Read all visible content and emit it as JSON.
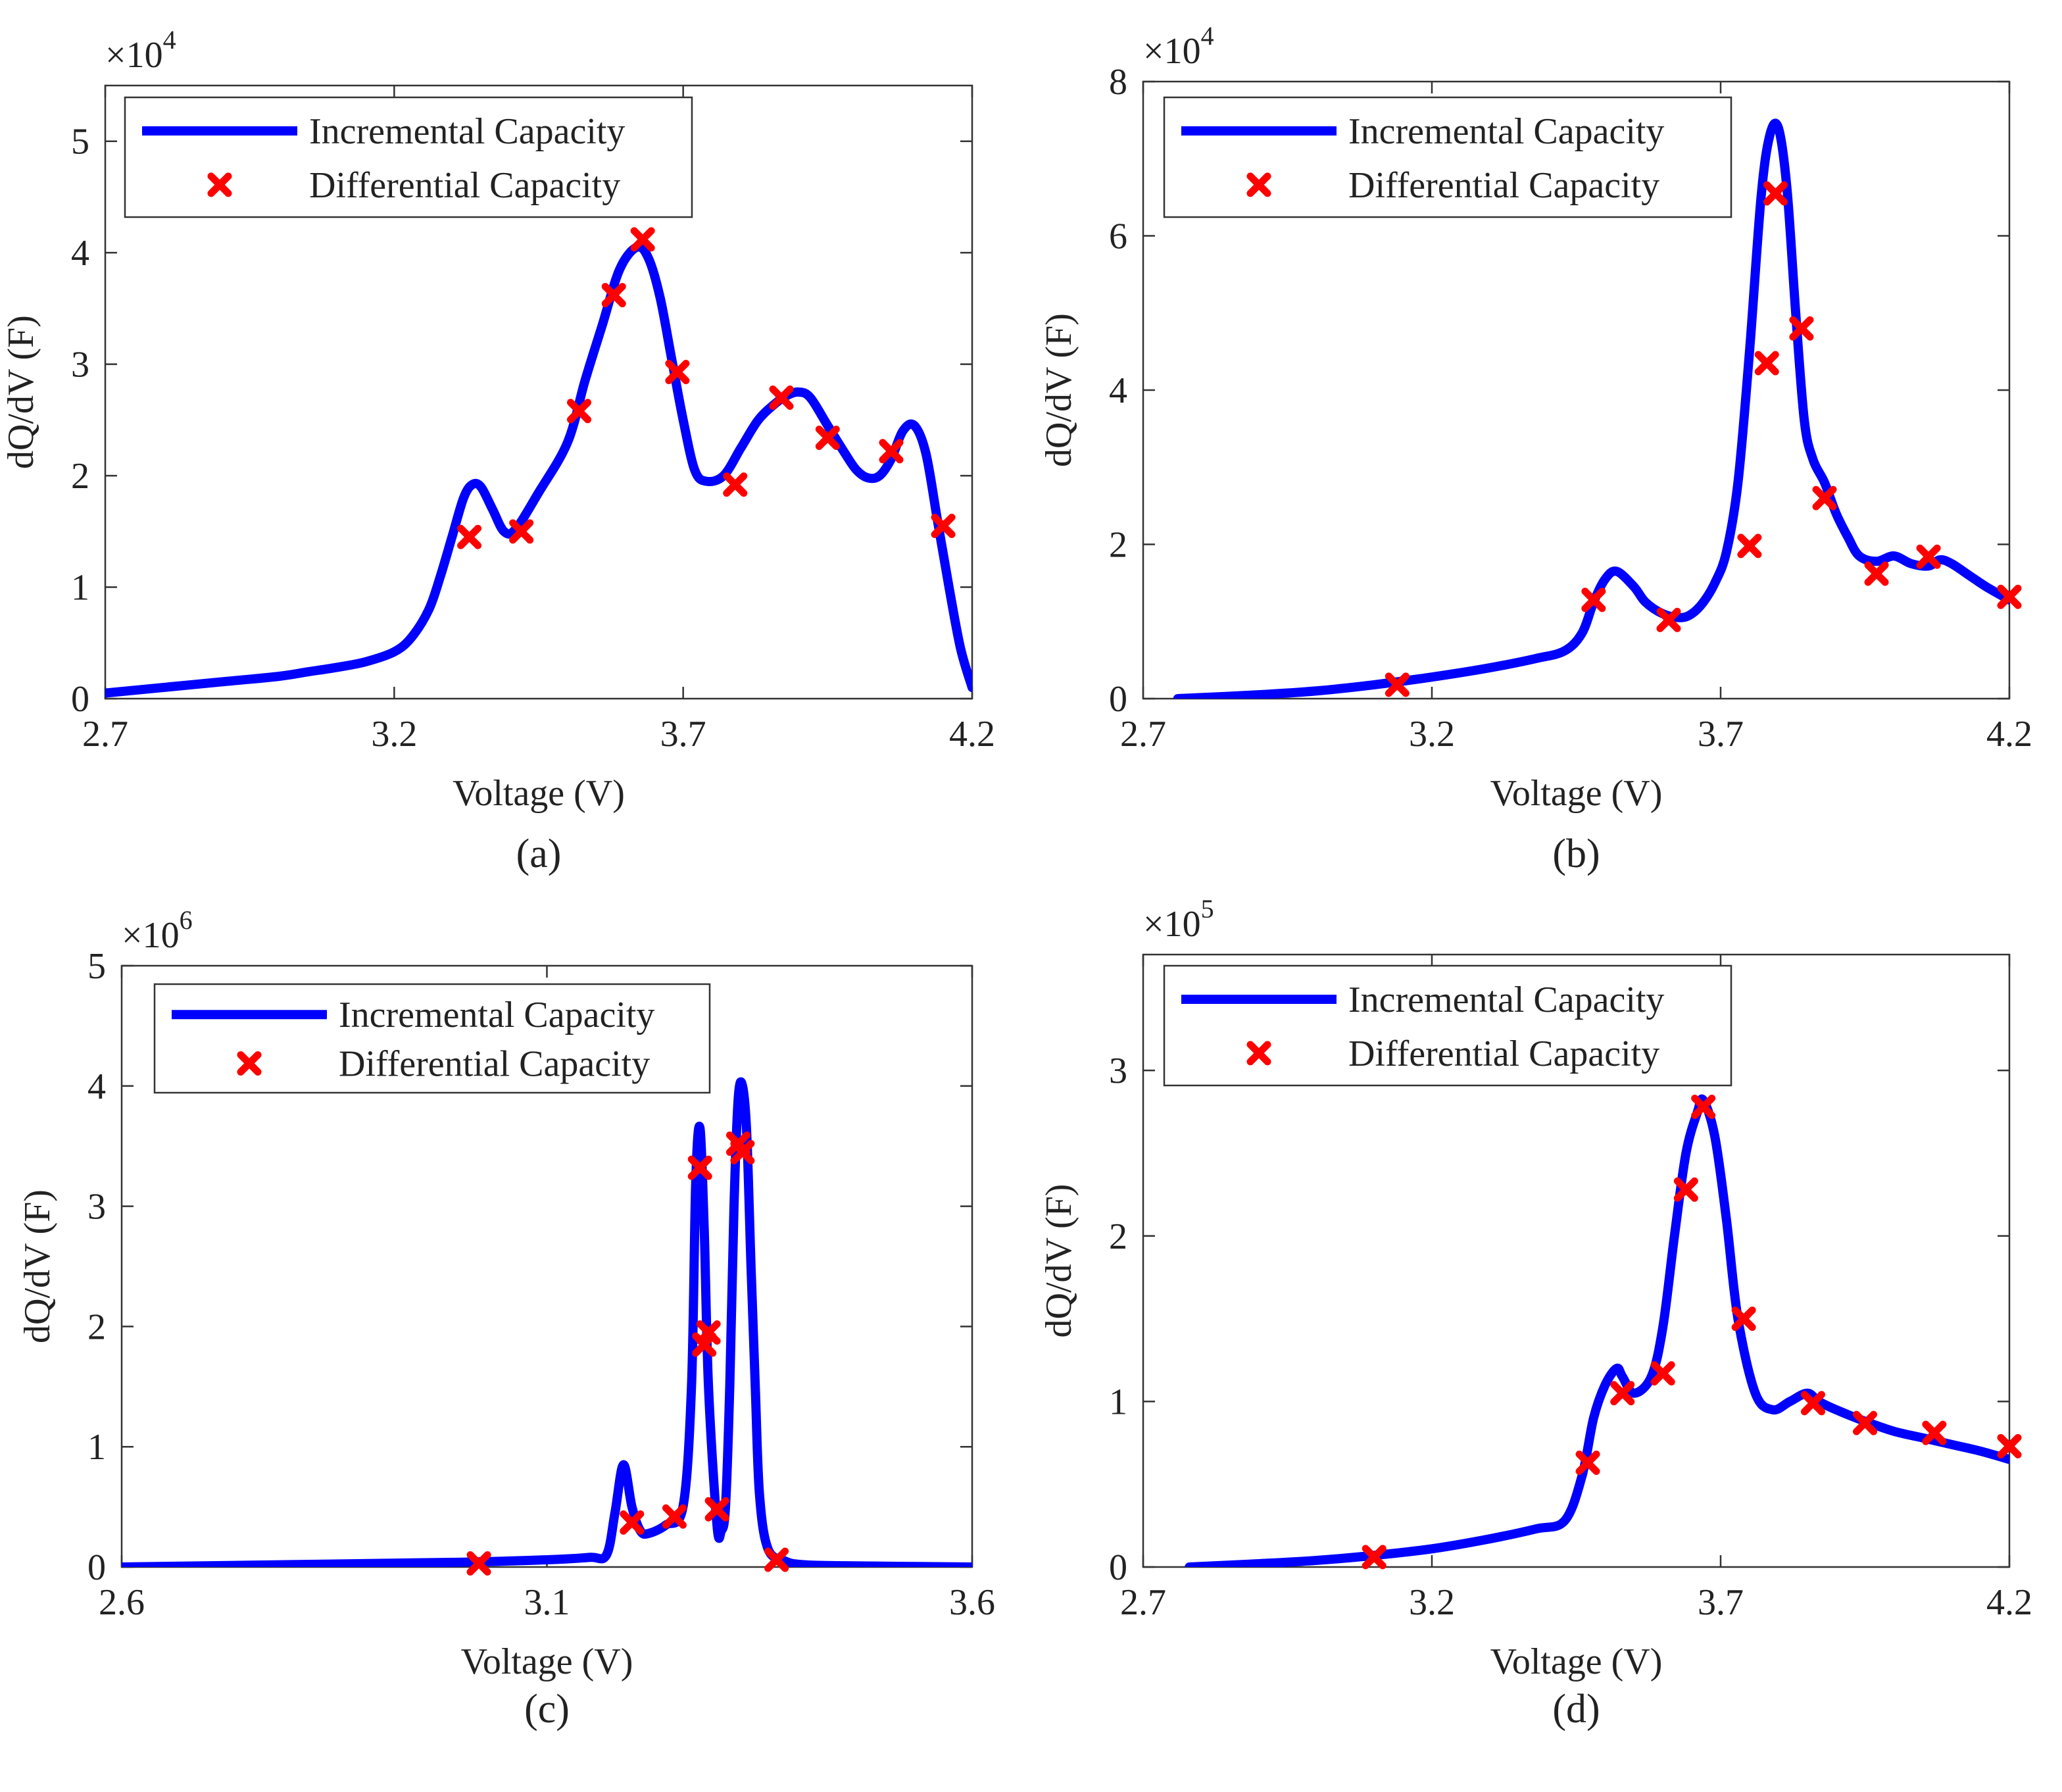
{
  "colors": {
    "incremental": "#0000ff",
    "differential": "#ff0000",
    "axis": "#333333",
    "text": "#222222"
  },
  "chart_data": [
    {
      "panel_label": "(a)",
      "type": "line",
      "xlabel": "Voltage (V)",
      "ylabel": "dQ/dV (F)",
      "exponent": "4",
      "xlim": [
        2.7,
        4.2
      ],
      "ylim": [
        0,
        5.5
      ],
      "xticks": [
        2.7,
        3.2,
        3.7,
        4.2
      ],
      "xtick_labels": [
        "2.7",
        "3.2",
        "3.7",
        "4.2"
      ],
      "yticks": [
        0,
        1,
        2,
        3,
        4,
        5
      ],
      "ytick_labels": [
        "0",
        "1",
        "2",
        "3",
        "4",
        "5"
      ],
      "legend": [
        "Incremental Capacity",
        "Differential Capacity"
      ],
      "legend_position": "top-left",
      "series": [
        {
          "name": "Incremental Capacity",
          "x": [
            2.7,
            2.8,
            2.9,
            3.0,
            3.05,
            3.1,
            3.15,
            3.2,
            3.23,
            3.26,
            3.28,
            3.3,
            3.32,
            3.335,
            3.35,
            3.37,
            3.39,
            3.41,
            3.45,
            3.5,
            3.53,
            3.56,
            3.59,
            3.62,
            3.64,
            3.66,
            3.68,
            3.7,
            3.72,
            3.74,
            3.77,
            3.8,
            3.83,
            3.86,
            3.88,
            3.9,
            3.92,
            3.95,
            3.98,
            4.0,
            4.02,
            4.04,
            4.06,
            4.08,
            4.1,
            4.12,
            4.14,
            4.16,
            4.18,
            4.2
          ],
          "y": [
            0.05,
            0.1,
            0.15,
            0.2,
            0.24,
            0.28,
            0.33,
            0.42,
            0.55,
            0.8,
            1.1,
            1.45,
            1.8,
            1.92,
            1.9,
            1.7,
            1.5,
            1.52,
            1.85,
            2.3,
            2.85,
            3.35,
            3.85,
            4.05,
            3.95,
            3.6,
            3.05,
            2.5,
            2.05,
            1.95,
            2.0,
            2.25,
            2.5,
            2.65,
            2.72,
            2.75,
            2.7,
            2.45,
            2.2,
            2.05,
            1.98,
            2.0,
            2.15,
            2.4,
            2.45,
            2.2,
            1.6,
            1.0,
            0.45,
            0.1
          ]
        },
        {
          "name": "Differential Capacity",
          "x": [
            3.33,
            3.42,
            3.52,
            3.58,
            3.63,
            3.69,
            3.79,
            3.87,
            3.95,
            4.06,
            4.15
          ],
          "y": [
            1.45,
            1.5,
            2.58,
            3.62,
            4.12,
            2.93,
            1.92,
            2.7,
            2.34,
            2.22,
            1.55
          ]
        }
      ]
    },
    {
      "panel_label": "(b)",
      "type": "line",
      "xlabel": "Voltage (V)",
      "ylabel": "dQ/dV (F)",
      "exponent": "4",
      "xlim": [
        2.7,
        4.2
      ],
      "ylim": [
        0,
        8
      ],
      "xticks": [
        2.7,
        3.2,
        3.7,
        4.2
      ],
      "xtick_labels": [
        "2.7",
        "3.2",
        "3.7",
        "4.2"
      ],
      "yticks": [
        0,
        2,
        4,
        6,
        8
      ],
      "ytick_labels": [
        "0",
        "2",
        "4",
        "6",
        "8"
      ],
      "legend": [
        "Incremental Capacity",
        "Differential Capacity"
      ],
      "legend_position": "top-left",
      "series": [
        {
          "name": "Incremental Capacity",
          "x": [
            2.76,
            2.9,
            3.0,
            3.1,
            3.2,
            3.3,
            3.38,
            3.43,
            3.46,
            3.48,
            3.5,
            3.52,
            3.55,
            3.57,
            3.6,
            3.63,
            3.65,
            3.67,
            3.69,
            3.71,
            3.73,
            3.75,
            3.77,
            3.785,
            3.8,
            3.815,
            3.83,
            3.845,
            3.86,
            3.88,
            3.9,
            3.92,
            3.94,
            3.97,
            4.0,
            4.03,
            4.06,
            4.08,
            4.1,
            4.13,
            4.16,
            4.2
          ],
          "y": [
            0.0,
            0.05,
            0.1,
            0.18,
            0.28,
            0.4,
            0.52,
            0.62,
            0.85,
            1.25,
            1.55,
            1.65,
            1.45,
            1.25,
            1.1,
            1.05,
            1.1,
            1.25,
            1.5,
            1.9,
            2.8,
            4.5,
            6.5,
            7.3,
            7.4,
            6.6,
            5.0,
            3.6,
            3.1,
            2.8,
            2.4,
            2.1,
            1.85,
            1.78,
            1.85,
            1.75,
            1.72,
            1.8,
            1.75,
            1.6,
            1.45,
            1.28
          ]
        },
        {
          "name": "Differential Capacity",
          "x": [
            3.14,
            3.48,
            3.61,
            3.75,
            3.78,
            3.795,
            3.84,
            3.88,
            3.97,
            4.06,
            4.2
          ],
          "y": [
            0.18,
            1.28,
            1.02,
            1.98,
            4.35,
            6.55,
            4.8,
            2.6,
            1.62,
            1.84,
            1.32
          ]
        }
      ]
    },
    {
      "panel_label": "(c)",
      "type": "line",
      "xlabel": "Voltage (V)",
      "ylabel": "dQ/dV (F)",
      "exponent": "6",
      "xlim": [
        2.6,
        3.6
      ],
      "ylim": [
        0,
        5
      ],
      "xticks": [
        2.6,
        3.1,
        3.6
      ],
      "xtick_labels": [
        "2.6",
        "3.1",
        "3.6"
      ],
      "yticks": [
        0,
        1,
        2,
        3,
        4,
        5
      ],
      "ytick_labels": [
        "0",
        "1",
        "2",
        "3",
        "4",
        "5"
      ],
      "legend": [
        "Incremental Capacity",
        "Differential Capacity"
      ],
      "legend_position": "top-left",
      "series": [
        {
          "name": "Incremental Capacity",
          "x": [
            2.6,
            2.8,
            3.0,
            3.1,
            3.15,
            3.17,
            3.18,
            3.19,
            3.2,
            3.21,
            3.22,
            3.24,
            3.26,
            3.27,
            3.275,
            3.28,
            3.285,
            3.29,
            3.3,
            3.305,
            3.31,
            3.315,
            3.32,
            3.325,
            3.33,
            3.335,
            3.34,
            3.345,
            3.35,
            3.36,
            3.38,
            3.4,
            3.45,
            3.6
          ],
          "y": [
            0.0,
            0.02,
            0.04,
            0.06,
            0.08,
            0.1,
            0.45,
            0.85,
            0.5,
            0.3,
            0.28,
            0.35,
            0.5,
            1.5,
            3.2,
            3.65,
            2.8,
            1.5,
            0.35,
            0.3,
            0.5,
            1.5,
            3.0,
            3.9,
            4.0,
            3.6,
            2.5,
            1.5,
            0.6,
            0.15,
            0.05,
            0.02,
            0.01,
            0.0
          ]
        },
        {
          "name": "Differential Capacity",
          "x": [
            3.02,
            3.2,
            3.25,
            3.28,
            3.285,
            3.29,
            3.3,
            3.325,
            3.33,
            3.37
          ],
          "y": [
            0.03,
            0.37,
            0.42,
            3.32,
            1.85,
            1.95,
            0.48,
            3.52,
            3.45,
            0.06
          ]
        }
      ]
    },
    {
      "panel_label": "(d)",
      "type": "line",
      "xlabel": "Voltage (V)",
      "ylabel": "dQ/dV (F)",
      "exponent": "5",
      "xlim": [
        2.7,
        4.2
      ],
      "ylim": [
        0,
        3.7
      ],
      "xticks": [
        2.7,
        3.2,
        3.7,
        4.2
      ],
      "xtick_labels": [
        "2.7",
        "3.2",
        "3.7",
        "4.2"
      ],
      "yticks": [
        0,
        1,
        2,
        3
      ],
      "ytick_labels": [
        "0",
        "1",
        "2",
        "3"
      ],
      "legend": [
        "Incremental Capacity",
        "Differential Capacity"
      ],
      "legend_position": "top-left",
      "series": [
        {
          "name": "Incremental Capacity",
          "x": [
            2.78,
            2.9,
            3.0,
            3.1,
            3.2,
            3.3,
            3.38,
            3.43,
            3.46,
            3.48,
            3.5,
            3.52,
            3.53,
            3.55,
            3.58,
            3.6,
            3.62,
            3.64,
            3.66,
            3.67,
            3.69,
            3.71,
            3.73,
            3.76,
            3.79,
            3.82,
            3.85,
            3.87,
            3.9,
            3.95,
            4.0,
            4.05,
            4.1,
            4.15,
            4.2
          ],
          "y": [
            0.0,
            0.02,
            0.04,
            0.07,
            0.11,
            0.17,
            0.23,
            0.28,
            0.55,
            0.9,
            1.1,
            1.2,
            1.15,
            1.05,
            1.15,
            1.45,
            2.0,
            2.5,
            2.75,
            2.82,
            2.6,
            2.1,
            1.5,
            1.05,
            0.95,
            1.0,
            1.05,
            1.0,
            0.95,
            0.88,
            0.82,
            0.78,
            0.74,
            0.7,
            0.65
          ]
        },
        {
          "name": "Differential Capacity",
          "x": [
            3.1,
            3.47,
            3.53,
            3.6,
            3.64,
            3.67,
            3.74,
            3.86,
            3.95,
            4.07,
            4.2
          ],
          "y": [
            0.06,
            0.63,
            1.05,
            1.17,
            2.28,
            2.78,
            1.5,
            0.99,
            0.87,
            0.81,
            0.73
          ]
        }
      ]
    }
  ]
}
